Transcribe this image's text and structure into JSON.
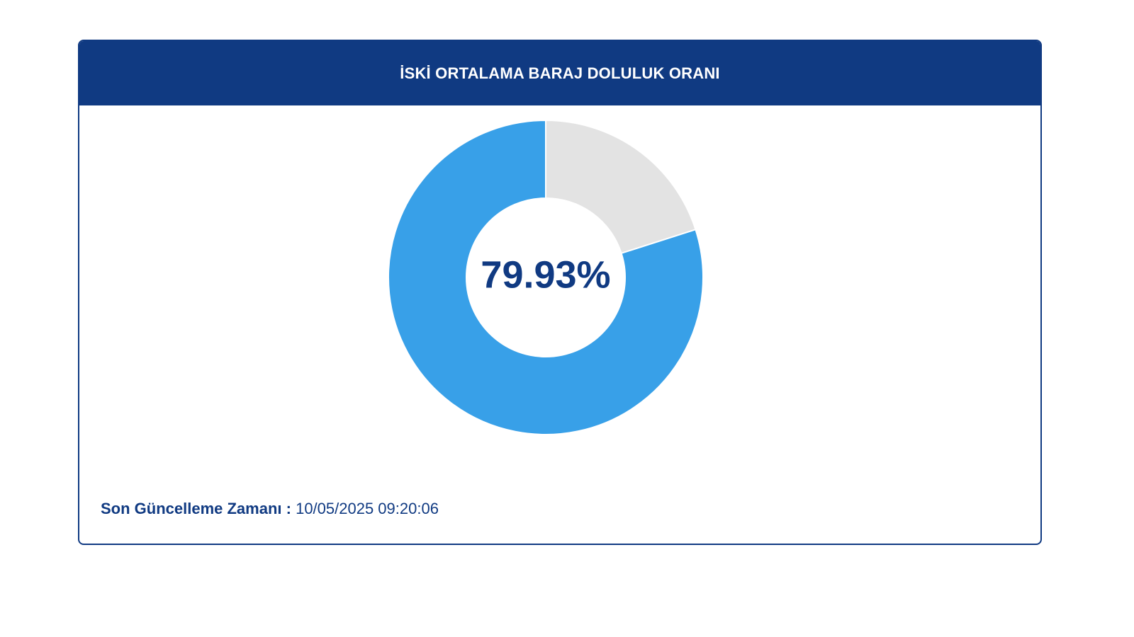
{
  "header": {
    "title": "İSKİ ORTALAMA BARAJ DOLULUK ORANI"
  },
  "chart_data": {
    "type": "pie",
    "style": "donut",
    "center_label": "79.93%",
    "slices": [
      {
        "value": 79.93,
        "color": "#38a0e8"
      },
      {
        "value": 20.07,
        "color": "#e3e3e3"
      }
    ],
    "start_angle": "top, clockwise, gray slice first"
  },
  "footer": {
    "label": "Son Güncelleme Zamanı :",
    "value": "10/05/2025 09:20:06"
  },
  "colors": {
    "header_bg": "#103a82",
    "text": "#103a82",
    "fill": "#38a0e8",
    "empty": "#e3e3e3"
  }
}
